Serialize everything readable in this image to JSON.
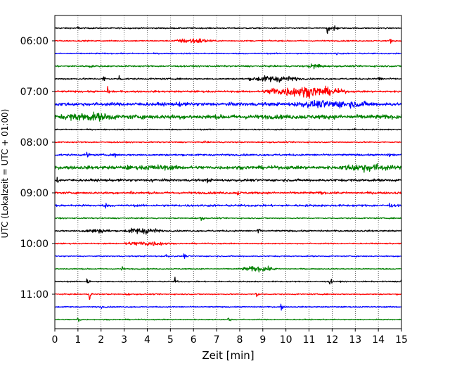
{
  "chart_data": {
    "type": "line",
    "title": "",
    "xlabel": "Zeit  [min]",
    "ylabel": "UTC (Lokalzeit = UTC + 01:00)",
    "xlim": [
      0,
      15
    ],
    "x_ticks": [
      0,
      1,
      2,
      3,
      4,
      5,
      6,
      7,
      8,
      9,
      10,
      11,
      12,
      13,
      14,
      15
    ],
    "y_tick_labels": [
      "06:00",
      "07:00",
      "08:00",
      "09:00",
      "10:00",
      "11:00"
    ],
    "grid": "vertical dotted",
    "legend": "none",
    "trace_colors": [
      "#000000",
      "#ff0000",
      "#0000ff",
      "#008000"
    ],
    "series": [
      {
        "start": "05:45",
        "noise": 0.08,
        "events": [
          {
            "t": 11.8,
            "amp": 0.9
          },
          {
            "t": 12.1,
            "amp": 1.3
          },
          {
            "t": 1.0,
            "amp": 0.25
          }
        ]
      },
      {
        "start": "06:00",
        "noise": 0.08,
        "bursts": [
          {
            "t": 6.0,
            "width": 1.8,
            "amp": 0.3
          }
        ],
        "events": [
          {
            "t": 14.5,
            "amp": 0.5
          }
        ]
      },
      {
        "start": "06:15",
        "noise": 0.08,
        "events": [
          {
            "t": 12.2,
            "amp": 0.2
          }
        ]
      },
      {
        "start": "06:30",
        "noise": 0.1,
        "bursts": [
          {
            "t": 11.3,
            "width": 0.8,
            "amp": 0.3
          }
        ],
        "events": [
          {
            "t": 1.5,
            "amp": 0.3
          }
        ]
      },
      {
        "start": "06:45",
        "noise": 0.1,
        "bursts": [
          {
            "t": 9.5,
            "width": 2.5,
            "amp": 0.35
          }
        ],
        "events": [
          {
            "t": 2.1,
            "amp": 0.55
          },
          {
            "t": 2.8,
            "amp": 0.5
          },
          {
            "t": 14.0,
            "amp": 0.6
          }
        ]
      },
      {
        "start": "07:00",
        "noise": 0.12,
        "bursts": [
          {
            "t": 10.8,
            "width": 4.0,
            "amp": 0.6
          }
        ],
        "events": [
          {
            "t": 2.3,
            "amp": 0.5
          },
          {
            "t": 9.4,
            "amp": 0.7
          }
        ]
      },
      {
        "start": "07:15",
        "noise": 0.22,
        "bursts": [
          {
            "t": 12.0,
            "width": 4.0,
            "amp": 0.3
          }
        ],
        "events": [
          {
            "t": 5.4,
            "amp": 0.4
          }
        ]
      },
      {
        "start": "07:30",
        "noise": 0.28,
        "bursts": [
          {
            "t": 1.5,
            "width": 2.5,
            "amp": 0.3
          }
        ],
        "events": [
          {
            "t": 0.5,
            "amp": 0.4
          }
        ]
      },
      {
        "start": "07:45",
        "noise": 0.08,
        "events": [
          {
            "t": 13.0,
            "amp": 0.15
          }
        ]
      },
      {
        "start": "08:00",
        "noise": 0.08,
        "events": [
          {
            "t": 6.5,
            "amp": 0.15
          }
        ]
      },
      {
        "start": "08:15",
        "noise": 0.12,
        "events": [
          {
            "t": 1.4,
            "amp": 0.45
          },
          {
            "t": 2.6,
            "amp": 0.5
          },
          {
            "t": 14.5,
            "amp": 0.3
          }
        ]
      },
      {
        "start": "08:30",
        "noise": 0.22,
        "bursts": [
          {
            "t": 13.5,
            "width": 2.5,
            "amp": 0.35
          },
          {
            "t": 4.5,
            "width": 2.0,
            "amp": 0.15
          }
        ],
        "events": [
          {
            "t": 3.1,
            "amp": 0.35
          }
        ]
      },
      {
        "start": "08:45",
        "noise": 0.16,
        "events": [
          {
            "t": 0.1,
            "amp": 0.5
          },
          {
            "t": 4.2,
            "amp": 0.45
          },
          {
            "t": 6.6,
            "amp": 0.3
          }
        ]
      },
      {
        "start": "09:00",
        "noise": 0.14,
        "events": [
          {
            "t": 3.3,
            "amp": 0.3
          },
          {
            "t": 7.9,
            "amp": 0.35
          },
          {
            "t": 11.5,
            "amp": 0.3
          }
        ]
      },
      {
        "start": "09:15",
        "noise": 0.14,
        "events": [
          {
            "t": 2.2,
            "amp": 0.25
          },
          {
            "t": 14.5,
            "amp": 0.3
          }
        ]
      },
      {
        "start": "09:30",
        "noise": 0.08,
        "events": [
          {
            "t": 6.3,
            "amp": 0.7
          }
        ]
      },
      {
        "start": "09:45",
        "noise": 0.1,
        "bursts": [
          {
            "t": 3.8,
            "width": 1.8,
            "amp": 0.35
          },
          {
            "t": 1.8,
            "width": 1.5,
            "amp": 0.2
          }
        ],
        "events": [
          {
            "t": 8.8,
            "amp": 0.6
          }
        ]
      },
      {
        "start": "10:00",
        "noise": 0.08,
        "bursts": [
          {
            "t": 4.0,
            "width": 2.2,
            "amp": 0.25
          }
        ],
        "events": [
          {
            "t": 3.1,
            "amp": 0.35
          }
        ]
      },
      {
        "start": "10:15",
        "noise": 0.08,
        "events": [
          {
            "t": 4.8,
            "amp": 0.3
          },
          {
            "t": 5.6,
            "amp": 0.3
          }
        ]
      },
      {
        "start": "10:30",
        "noise": 0.07,
        "bursts": [
          {
            "t": 8.8,
            "width": 1.8,
            "amp": 0.3
          }
        ],
        "events": [
          {
            "t": 2.9,
            "amp": 0.4
          }
        ]
      },
      {
        "start": "10:45",
        "noise": 0.08,
        "events": [
          {
            "t": 1.4,
            "amp": 0.65
          },
          {
            "t": 5.2,
            "amp": 0.5
          },
          {
            "t": 11.9,
            "amp": 0.6
          },
          {
            "t": 15.0,
            "amp": 0.5
          }
        ]
      },
      {
        "start": "11:00",
        "noise": 0.08,
        "events": [
          {
            "t": 1.5,
            "amp": 0.7
          },
          {
            "t": 8.7,
            "amp": 0.8
          },
          {
            "t": 3.1,
            "amp": 0.2
          }
        ]
      },
      {
        "start": "11:15",
        "noise": 0.07,
        "events": [
          {
            "t": 9.8,
            "amp": 0.5
          },
          {
            "t": 2.0,
            "amp": 0.2
          }
        ]
      },
      {
        "start": "11:30",
        "noise": 0.07,
        "events": [
          {
            "t": 1.0,
            "amp": 0.6
          },
          {
            "t": 7.5,
            "amp": 0.55
          }
        ]
      }
    ]
  }
}
